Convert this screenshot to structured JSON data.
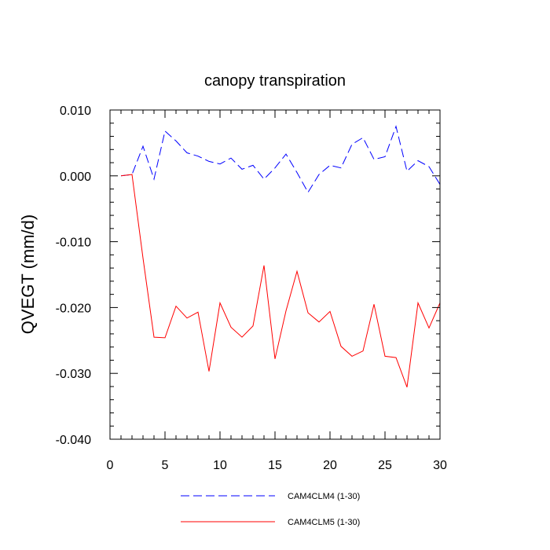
{
  "chart_data": {
    "type": "line",
    "title": "canopy transpiration",
    "xlabel": "",
    "ylabel": "QVEGT  (mm/d)",
    "xlim": [
      0,
      30
    ],
    "ylim": [
      -0.04,
      0.01
    ],
    "x_ticks": [
      0,
      5,
      10,
      15,
      20,
      25,
      30
    ],
    "x_tick_labels": [
      "0",
      "5",
      "10",
      "15",
      "20",
      "25",
      "30"
    ],
    "y_ticks": [
      0.01,
      0.0,
      -0.01,
      -0.02,
      -0.03,
      -0.04
    ],
    "y_tick_labels": [
      "0.010",
      "0.000",
      "-0.010",
      "-0.020",
      "-0.030",
      "-0.040"
    ],
    "grid": false,
    "legend_position": "bottom",
    "x": [
      1,
      2,
      3,
      4,
      5,
      6,
      7,
      8,
      9,
      10,
      11,
      12,
      13,
      14,
      15,
      16,
      17,
      18,
      19,
      20,
      21,
      22,
      23,
      24,
      25,
      26,
      27,
      28,
      29,
      30
    ],
    "series": [
      {
        "name": "CAM4CLM4 (1-30)",
        "color": "#0000ff",
        "style": "dashed",
        "values": [
          0.0,
          0.0002,
          0.0045,
          -0.0005,
          0.0068,
          0.0053,
          0.0035,
          0.003,
          0.0022,
          0.0018,
          0.0027,
          0.001,
          0.0016,
          -0.0005,
          0.0012,
          0.0033,
          0.0005,
          -0.0025,
          0.0002,
          0.0016,
          0.0012,
          0.0048,
          0.0058,
          0.0025,
          0.0029,
          0.0075,
          0.0007,
          0.0023,
          0.0014,
          -0.0013
        ]
      },
      {
        "name": "CAM4CLM5 (1-30)",
        "color": "#ff0000",
        "style": "solid",
        "values": [
          0.0,
          0.0002,
          -0.0125,
          -0.0245,
          -0.0246,
          -0.0198,
          -0.0216,
          -0.0207,
          -0.0297,
          -0.0193,
          -0.023,
          -0.0245,
          -0.0228,
          -0.0136,
          -0.0278,
          -0.0205,
          -0.0145,
          -0.0208,
          -0.0222,
          -0.0206,
          -0.0259,
          -0.0274,
          -0.0266,
          -0.0195,
          -0.0274,
          -0.0276,
          -0.0321,
          -0.0193,
          -0.0231,
          -0.0193
        ]
      }
    ]
  }
}
